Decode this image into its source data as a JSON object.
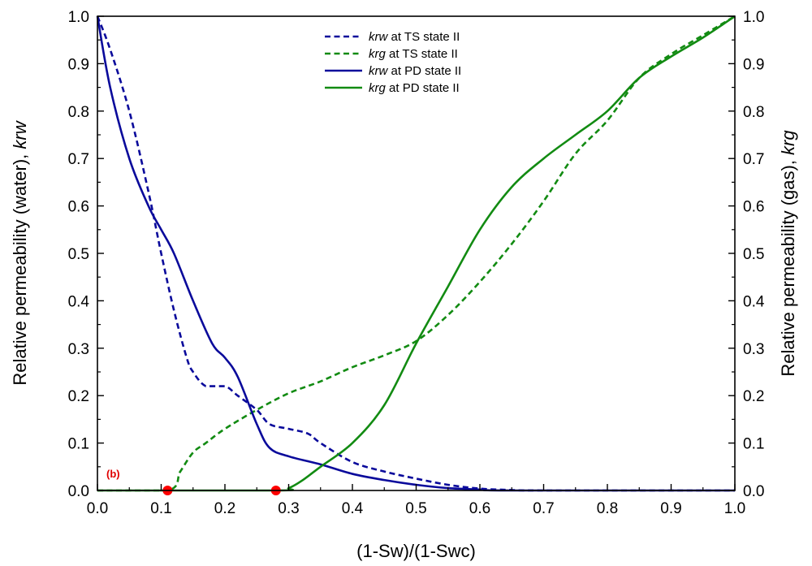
{
  "chart_data": {
    "type": "line",
    "panel_label": "(b)",
    "xlabel": "(1-Sw)/(1-Swc)",
    "ylabel_left": {
      "text": "Relative permeability (water), ",
      "italic": "krw"
    },
    "ylabel_right": {
      "text": "Relative permeability (gas), ",
      "italic": "krg"
    },
    "xlim": [
      0,
      1.0
    ],
    "ylim_left": [
      0,
      1.0
    ],
    "ylim_right": [
      0,
      1.0
    ],
    "x_ticks": [
      "0.0",
      "0.1",
      "0.2",
      "0.3",
      "0.4",
      "0.5",
      "0.6",
      "0.7",
      "0.8",
      "0.9",
      "1.0"
    ],
    "y_ticks": [
      "0.0",
      "0.1",
      "0.2",
      "0.3",
      "0.4",
      "0.5",
      "0.6",
      "0.7",
      "0.8",
      "0.9",
      "1.0"
    ],
    "grid": false,
    "legend_position": "top-center",
    "series": [
      {
        "name": "krw at TS state II",
        "label_italic": "krw",
        "label_rest": " at TS state II",
        "color": "#0a0a9b",
        "style": "dashed",
        "axis": "left",
        "x": [
          0.0,
          0.02,
          0.05,
          0.08,
          0.1,
          0.12,
          0.14,
          0.15,
          0.17,
          0.2,
          0.22,
          0.25,
          0.27,
          0.3,
          0.33,
          0.35,
          0.4,
          0.45,
          0.5,
          0.55,
          0.6,
          0.65,
          0.7,
          1.0
        ],
        "y": [
          1.0,
          0.93,
          0.8,
          0.63,
          0.5,
          0.38,
          0.28,
          0.25,
          0.22,
          0.22,
          0.2,
          0.17,
          0.14,
          0.13,
          0.12,
          0.1,
          0.06,
          0.04,
          0.025,
          0.012,
          0.004,
          0.001,
          0.0,
          0.0
        ]
      },
      {
        "name": "krg at TS state II",
        "label_italic": "krg",
        "label_rest": " at TS state II",
        "color": "#128b12",
        "style": "dashed",
        "axis": "right",
        "x": [
          0.0,
          0.11,
          0.13,
          0.15,
          0.17,
          0.2,
          0.25,
          0.3,
          0.35,
          0.4,
          0.45,
          0.5,
          0.55,
          0.6,
          0.65,
          0.7,
          0.75,
          0.8,
          0.85,
          0.9,
          0.95,
          1.0
        ],
        "y": [
          0.0,
          0.0,
          0.04,
          0.08,
          0.1,
          0.13,
          0.17,
          0.205,
          0.23,
          0.26,
          0.285,
          0.315,
          0.37,
          0.44,
          0.52,
          0.61,
          0.71,
          0.78,
          0.87,
          0.92,
          0.96,
          1.0
        ]
      },
      {
        "name": "krw at PD state II",
        "label_italic": "krw",
        "label_rest": " at PD state II",
        "color": "#0a0a9b",
        "style": "solid",
        "axis": "left",
        "x": [
          0.0,
          0.02,
          0.05,
          0.08,
          0.1,
          0.12,
          0.15,
          0.18,
          0.2,
          0.22,
          0.25,
          0.27,
          0.3,
          0.35,
          0.4,
          0.45,
          0.5,
          0.55,
          0.6,
          0.65,
          1.0
        ],
        "y": [
          1.0,
          0.85,
          0.7,
          0.6,
          0.55,
          0.5,
          0.4,
          0.31,
          0.28,
          0.24,
          0.14,
          0.09,
          0.072,
          0.055,
          0.035,
          0.022,
          0.012,
          0.005,
          0.002,
          0.0,
          0.0
        ]
      },
      {
        "name": "krg at PD state II",
        "label_italic": "krg",
        "label_rest": " at PD state II",
        "color": "#128b12",
        "style": "solid",
        "axis": "right",
        "x": [
          0.0,
          0.28,
          0.3,
          0.32,
          0.35,
          0.4,
          0.45,
          0.5,
          0.55,
          0.6,
          0.65,
          0.7,
          0.75,
          0.8,
          0.85,
          0.9,
          0.95,
          1.0
        ],
        "y": [
          0.0,
          0.0,
          0.005,
          0.02,
          0.05,
          0.1,
          0.18,
          0.31,
          0.43,
          0.55,
          0.64,
          0.7,
          0.75,
          0.8,
          0.87,
          0.915,
          0.955,
          1.0
        ]
      }
    ],
    "markers": [
      {
        "x": 0.11,
        "y": 0.0,
        "color": "#ff0000"
      },
      {
        "x": 0.28,
        "y": 0.0,
        "color": "#ff0000"
      }
    ],
    "panel_label_color": "#e00000"
  }
}
